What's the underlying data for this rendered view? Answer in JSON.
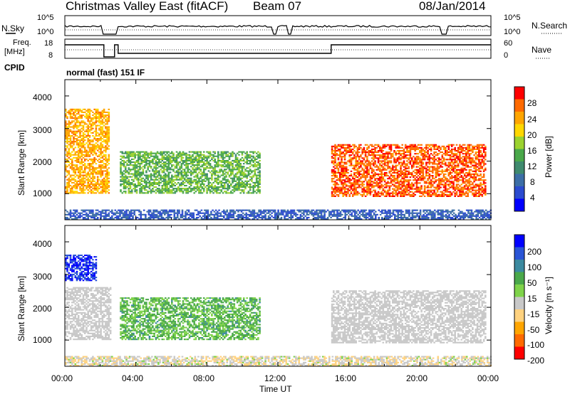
{
  "header": {
    "station": "Christmas Valley East (fitACF)",
    "beam": "Beam 07",
    "date": "08/Jan/2014",
    "mode": "normal (fast) 151 IF"
  },
  "status_panels": {
    "nsky": {
      "label": "N.Sky",
      "ticks": [
        "10^5",
        "10^0"
      ],
      "right_ticks": [
        "10^5",
        "10^0"
      ],
      "right_label": "N.Search"
    },
    "freq": {
      "label_line1": "Freq.",
      "label_line2": "[MHz]",
      "ticks": [
        "18",
        "8"
      ],
      "right_ticks": [
        "60",
        "0"
      ],
      "right_label": "Nave"
    },
    "cpid": {
      "label": "CPID"
    }
  },
  "colors": {
    "power_scale": [
      "#0000ff",
      "#2b4bcf",
      "#3c6ea6",
      "#3f8a6e",
      "#4aa84a",
      "#9bd22f",
      "#ffd700",
      "#ffa500",
      "#ff6a00",
      "#ff0000"
    ],
    "velocity_scale": [
      "#0000ff",
      "#2a55d6",
      "#3c8aa0",
      "#4aa84a",
      "#7fd34a",
      "#c8c8c8",
      "#ffd27f",
      "#ffa500",
      "#ff6a00",
      "#ff0000"
    ],
    "ground_scatter": "#c8c8c8"
  },
  "chart_data": [
    {
      "type": "heatmap",
      "panel": "power",
      "ylabel": "Slant Range [km]",
      "yticks": [
        "4000",
        "3000",
        "2000",
        "1000"
      ],
      "ylim": [
        200,
        4500
      ],
      "xlim": [
        "00:00",
        "24:00"
      ],
      "colorbar": {
        "label": "Power [dB]",
        "ticks": [
          "28",
          "24",
          "20",
          "16",
          "12",
          "8",
          "4"
        ],
        "range": [
          0,
          30
        ]
      },
      "regions": [
        {
          "name": "early band",
          "t": [
            0.0,
            2.5
          ],
          "range_km": [
            1000,
            3600
          ],
          "level_db": 22
        },
        {
          "name": "morning band",
          "t": [
            3.1,
            11.0
          ],
          "range_km": [
            1000,
            2300
          ],
          "level_db": 14
        },
        {
          "name": "evening band",
          "t": [
            15.0,
            23.7
          ],
          "range_km": [
            900,
            2500
          ],
          "level_db": 26
        },
        {
          "name": "near range",
          "t": [
            0.0,
            24.0
          ],
          "range_km": [
            200,
            500
          ],
          "level_db": 6
        }
      ]
    },
    {
      "type": "heatmap",
      "panel": "velocity",
      "ylabel": "Slant Range [km]",
      "xlabel": "Time UT",
      "xticks": [
        "00:00",
        "04:00",
        "08:00",
        "12:00",
        "16:00",
        "20:00",
        "00:00"
      ],
      "yticks": [
        "4000",
        "3000",
        "2000",
        "1000"
      ],
      "ylim": [
        200,
        4500
      ],
      "colorbar": {
        "label": "Velocity [m s⁻¹]",
        "ticks": [
          "200",
          "100",
          "50",
          "15",
          "-15",
          "-50",
          "-100",
          "-200"
        ],
        "range": [
          -250,
          250
        ]
      },
      "regions": [
        {
          "name": "early scatter",
          "t": [
            0.0,
            1.8
          ],
          "range_km": [
            2800,
            3600
          ],
          "velocity": 200
        },
        {
          "name": "ground scatter",
          "t": [
            0.0,
            2.6
          ],
          "range_km": [
            1000,
            2600
          ],
          "velocity": 0
        },
        {
          "name": "morning flow",
          "t": [
            3.1,
            11.0
          ],
          "range_km": [
            1000,
            2300
          ],
          "velocity": 60
        },
        {
          "name": "evening ground scatter",
          "t": [
            15.0,
            23.7
          ],
          "range_km": [
            900,
            2500
          ],
          "velocity": 0
        },
        {
          "name": "near range",
          "t": [
            0.0,
            24.0
          ],
          "range_km": [
            200,
            500
          ],
          "velocity": -40
        }
      ]
    }
  ]
}
